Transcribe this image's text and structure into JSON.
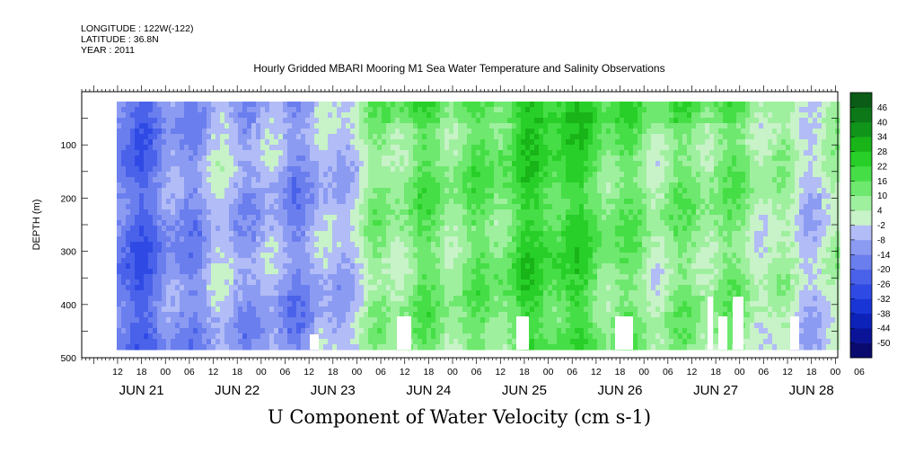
{
  "header": {
    "longitude": "LONGITUDE : 122W(-122)",
    "latitude": "LATITUDE : 36.8N",
    "year": "YEAR : 2011"
  },
  "chart_data": {
    "type": "heatmap",
    "title": "Hourly Gridded MBARI Mooring M1 Sea Water Temperature and Salinity Observations",
    "xlabel": "U Component of Water Velocity (cm s-1)",
    "ylabel": "DEPTH (m)",
    "ylim": [
      500,
      0
    ],
    "y_ticks": [
      100,
      200,
      300,
      400,
      500
    ],
    "x_hour_ticks": [
      "12",
      "18",
      "00",
      "06",
      "12",
      "18",
      "00",
      "06",
      "12",
      "18",
      "00",
      "06",
      "12",
      "18",
      "00",
      "06",
      "12",
      "18",
      "00",
      "06",
      "12",
      "18",
      "00",
      "06",
      "12",
      "18",
      "00",
      "06",
      "12",
      "18",
      "00",
      "06"
    ],
    "x_day_labels": [
      "JUN 21",
      "JUN 22",
      "JUN 23",
      "JUN 24",
      "JUN 25",
      "JUN 26",
      "JUN 27",
      "JUN 28"
    ],
    "colorbar": {
      "levels": [
        -50,
        -44,
        -38,
        -32,
        -26,
        -20,
        -14,
        -8,
        -2,
        4,
        10,
        16,
        22,
        28,
        34,
        40,
        46
      ],
      "colors": [
        "#0a0a6e",
        "#0b1496",
        "#0d22b8",
        "#1a35d6",
        "#2f4ae4",
        "#4a62ea",
        "#6a7eee",
        "#8c9bf2",
        "#b2bcf6",
        "#c8f2c8",
        "#9ef09e",
        "#6ee86e",
        "#46de46",
        "#28cf28",
        "#18b418",
        "#10941a",
        "#0c7818",
        "#0a5c16"
      ]
    },
    "depth_ranges_per_day": [
      {
        "day": "JUN 21",
        "mean_u": -15
      },
      {
        "day": "JUN 22",
        "mean_u": -8
      },
      {
        "day": "JUN 23",
        "mean_u": -4
      },
      {
        "day": "JUN 24",
        "mean_u": 14
      },
      {
        "day": "JUN 25",
        "mean_u": 20
      },
      {
        "day": "JUN 26",
        "mean_u": 16
      },
      {
        "day": "JUN 27",
        "mean_u": 8
      },
      {
        "day": "JUN 28",
        "mean_u": 4
      }
    ]
  }
}
